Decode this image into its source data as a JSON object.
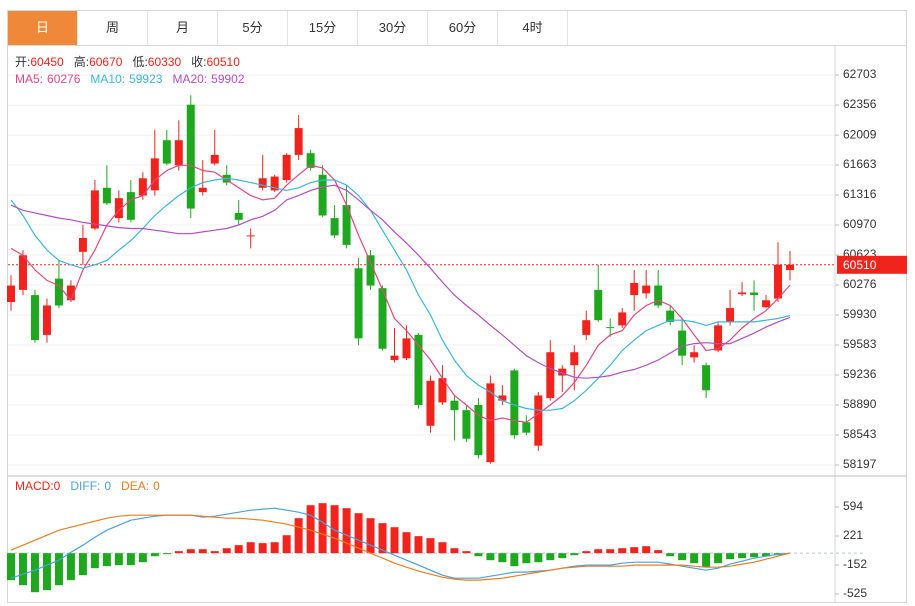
{
  "tabs": [
    "日",
    "周",
    "月",
    "5分",
    "15分",
    "30分",
    "60分",
    "4时"
  ],
  "active_tab": 0,
  "chart_data": [
    {
      "type": "candlestick",
      "ohlc_labels": [
        {
          "label": "开:",
          "value": 60450
        },
        {
          "label": "高:",
          "value": 60670
        },
        {
          "label": "低:",
          "value": 60330
        },
        {
          "label": "收:",
          "value": 60510
        }
      ],
      "last_price": 60510,
      "up_color": "#f0241c",
      "down_color": "#1fa81f",
      "open": [
        60080,
        60220,
        60160,
        59700,
        60350,
        60100,
        60660,
        60930,
        61400,
        61050,
        61350,
        61310,
        61370,
        61950,
        61660,
        62360,
        61350,
        61680,
        61550,
        61110,
        60840,
        61400,
        61370,
        61490,
        61780,
        61800,
        61550,
        61050,
        61200,
        60470,
        60620,
        60240,
        59410,
        59430,
        59700,
        58650,
        58920,
        58940,
        58830,
        58890,
        58230,
        58940,
        59290,
        58690,
        58420,
        58970,
        59230,
        59350,
        59700,
        60220,
        59790,
        59810,
        60160,
        60180,
        60270,
        59980,
        59750,
        59440,
        59350,
        59520,
        59850,
        60170,
        60190,
        60020,
        60120,
        60450
      ],
      "high": [
        60390,
        60680,
        60220,
        60120,
        60560,
        60330,
        60970,
        61490,
        61660,
        61370,
        61490,
        61580,
        62070,
        62070,
        62180,
        62470,
        61720,
        62070,
        61660,
        61260,
        60930,
        61780,
        61550,
        61800,
        62240,
        61840,
        61660,
        61200,
        61430,
        60590,
        60680,
        60270,
        59780,
        59810,
        59720,
        59230,
        59350,
        59000,
        58890,
        58970,
        59230,
        59120,
        59310,
        58770,
        59040,
        59640,
        59350,
        59580,
        59980,
        60510,
        59890,
        60010,
        60450,
        60450,
        60450,
        60040,
        59890,
        59580,
        59380,
        59850,
        60220,
        60310,
        60330,
        60160,
        60770,
        60670
      ],
      "low": [
        59980,
        60160,
        59610,
        59610,
        60010,
        60080,
        60510,
        60910,
        61200,
        61000,
        61000,
        61260,
        61310,
        61660,
        61600,
        61050,
        61310,
        61660,
        61430,
        60970,
        60700,
        61370,
        61350,
        61460,
        61720,
        61600,
        61060,
        60820,
        60700,
        59580,
        60220,
        59520,
        59380,
        59410,
        58850,
        58570,
        58890,
        58480,
        58460,
        58270,
        58210,
        58890,
        58500,
        58540,
        58360,
        58940,
        59040,
        59060,
        59640,
        59850,
        59680,
        59780,
        59980,
        60120,
        60010,
        59810,
        59350,
        59380,
        58970,
        59500,
        59810,
        60150,
        59980,
        60010,
        60080,
        60330
      ],
      "close": [
        60270,
        60620,
        59640,
        60040,
        60040,
        60270,
        60820,
        61370,
        61220,
        61280,
        61030,
        61510,
        61740,
        61680,
        61950,
        61160,
        61400,
        61780,
        61460,
        61030,
        60850,
        61510,
        61530,
        61780,
        62090,
        61630,
        61080,
        60850,
        60740,
        59660,
        60270,
        59540,
        59460,
        59660,
        58890,
        59170,
        59200,
        58830,
        58500,
        58310,
        59140,
        59000,
        58540,
        58570,
        59000,
        59500,
        59310,
        59500,
        59870,
        59870,
        59780,
        59960,
        60300,
        60270,
        60040,
        59850,
        59460,
        59500,
        59060,
        59810,
        60010,
        60190,
        60160,
        60100,
        60510,
        60510
      ],
      "series": [
        {
          "name": "MA5:",
          "legend_value": 60276,
          "color": "#e4467e",
          "values": [
            60700,
            60620,
            60450,
            60330,
            60270,
            60100,
            60450,
            60680,
            60970,
            61140,
            61260,
            61310,
            61490,
            61600,
            61660,
            61660,
            61600,
            61580,
            61490,
            61400,
            61310,
            61260,
            61280,
            61430,
            61550,
            61660,
            61630,
            61490,
            61200,
            60850,
            60540,
            60220,
            59890,
            59750,
            59580,
            59410,
            59200,
            59000,
            58890,
            58770,
            58710,
            58740,
            58710,
            58690,
            58790,
            58890,
            59000,
            59150,
            59350,
            59580,
            59700,
            59750,
            59930,
            60040,
            60100,
            60040,
            59890,
            59700,
            59520,
            59540,
            59640,
            59780,
            59890,
            59980,
            60120,
            60276
          ]
        },
        {
          "name": "MA10:",
          "legend_value": 59923,
          "color": "#3bb6d9",
          "values": [
            61260,
            61080,
            60850,
            60680,
            60560,
            60510,
            60470,
            60510,
            60560,
            60680,
            60790,
            60930,
            61080,
            61200,
            61310,
            61400,
            61460,
            61490,
            61510,
            61490,
            61460,
            61430,
            61400,
            61370,
            61400,
            61460,
            61490,
            61490,
            61430,
            61310,
            61140,
            60910,
            60680,
            60450,
            60160,
            59930,
            59640,
            59410,
            59230,
            59120,
            59040,
            58940,
            58890,
            58850,
            58830,
            58830,
            58850,
            58940,
            59060,
            59200,
            59350,
            59520,
            59640,
            59750,
            59810,
            59870,
            59870,
            59850,
            59810,
            59850,
            59850,
            59850,
            59850,
            59870,
            59890,
            59923
          ]
        },
        {
          "name": "MA20:",
          "legend_value": 59902,
          "color": "#b24fc2",
          "values": [
            61200,
            61140,
            61110,
            61080,
            61050,
            61030,
            61000,
            60980,
            60960,
            60940,
            60930,
            60930,
            60910,
            60890,
            60870,
            60870,
            60890,
            60910,
            60930,
            60970,
            61030,
            61070,
            61140,
            61260,
            61310,
            61370,
            61410,
            61430,
            61370,
            61260,
            61140,
            61030,
            60890,
            60760,
            60620,
            60470,
            60310,
            60160,
            60040,
            59930,
            59810,
            59700,
            59580,
            59460,
            59380,
            59310,
            59260,
            59210,
            59200,
            59210,
            59230,
            59270,
            59300,
            59350,
            59410,
            59490,
            59570,
            59600,
            59610,
            59600,
            59600,
            59660,
            59720,
            59790,
            59850,
            59902
          ]
        }
      ],
      "ylim": [
        58081,
        63027
      ],
      "yticks": [
        62703,
        62356,
        62009,
        61663,
        61316,
        60970,
        60623,
        60276,
        59930,
        59583,
        59236,
        58890,
        58543,
        58197
      ],
      "grid": true
    },
    {
      "type": "macd",
      "histogram": {
        "name": "MACD:",
        "legend_value": 0,
        "up_color": "#f0241c",
        "down_color": "#1fa81f",
        "values": [
          -347,
          -412,
          -502,
          -476,
          -412,
          -347,
          -283,
          -193,
          -167,
          -154,
          -154,
          -116,
          -39,
          -13,
          26,
          51,
          51,
          26,
          64,
          103,
          141,
          129,
          141,
          231,
          450,
          617,
          643,
          617,
          579,
          514,
          450,
          386,
          334,
          270,
          219,
          193,
          141,
          64,
          26,
          -39,
          -90,
          -116,
          -167,
          -129,
          -116,
          -90,
          -64,
          -26,
          26,
          51,
          51,
          64,
          77,
          90,
          39,
          -39,
          -90,
          -129,
          -180,
          -129,
          -77,
          -64,
          -51,
          -39,
          -26,
          0
        ]
      },
      "series": [
        {
          "name": "DIFF:",
          "legend_value": 0,
          "color": "#4a9fe2",
          "values": [
            -322,
            -270,
            -219,
            -154,
            -90,
            13,
            103,
            206,
            296,
            360,
            424,
            450,
            476,
            489,
            489,
            489,
            463,
            476,
            501,
            527,
            553,
            566,
            579,
            553,
            527,
            489,
            399,
            296,
            231,
            167,
            103,
            39,
            -26,
            -90,
            -154,
            -219,
            -283,
            -322,
            -322,
            -322,
            -296,
            -270,
            -244,
            -244,
            -231,
            -219,
            -193,
            -167,
            -154,
            -154,
            -154,
            -129,
            -116,
            -116,
            -116,
            -141,
            -167,
            -193,
            -219,
            -193,
            -141,
            -103,
            -64,
            -39,
            -13,
            0
          ]
        },
        {
          "name": "DEA:",
          "legend_value": 0,
          "color": "#f07c1e",
          "values": [
            39,
            103,
            167,
            231,
            296,
            334,
            373,
            411,
            450,
            476,
            489,
            489,
            489,
            489,
            489,
            489,
            476,
            463,
            450,
            450,
            437,
            424,
            399,
            373,
            334,
            296,
            244,
            193,
            129,
            64,
            0,
            -64,
            -129,
            -180,
            -231,
            -270,
            -309,
            -334,
            -347,
            -347,
            -334,
            -322,
            -296,
            -270,
            -244,
            -219,
            -193,
            -180,
            -167,
            -167,
            -167,
            -167,
            -154,
            -154,
            -154,
            -154,
            -154,
            -167,
            -180,
            -180,
            -167,
            -141,
            -116,
            -77,
            -39,
            0
          ]
        }
      ],
      "ylim": [
        -641,
        980
      ],
      "yticks": [
        594,
        221,
        -152,
        -525
      ]
    }
  ]
}
